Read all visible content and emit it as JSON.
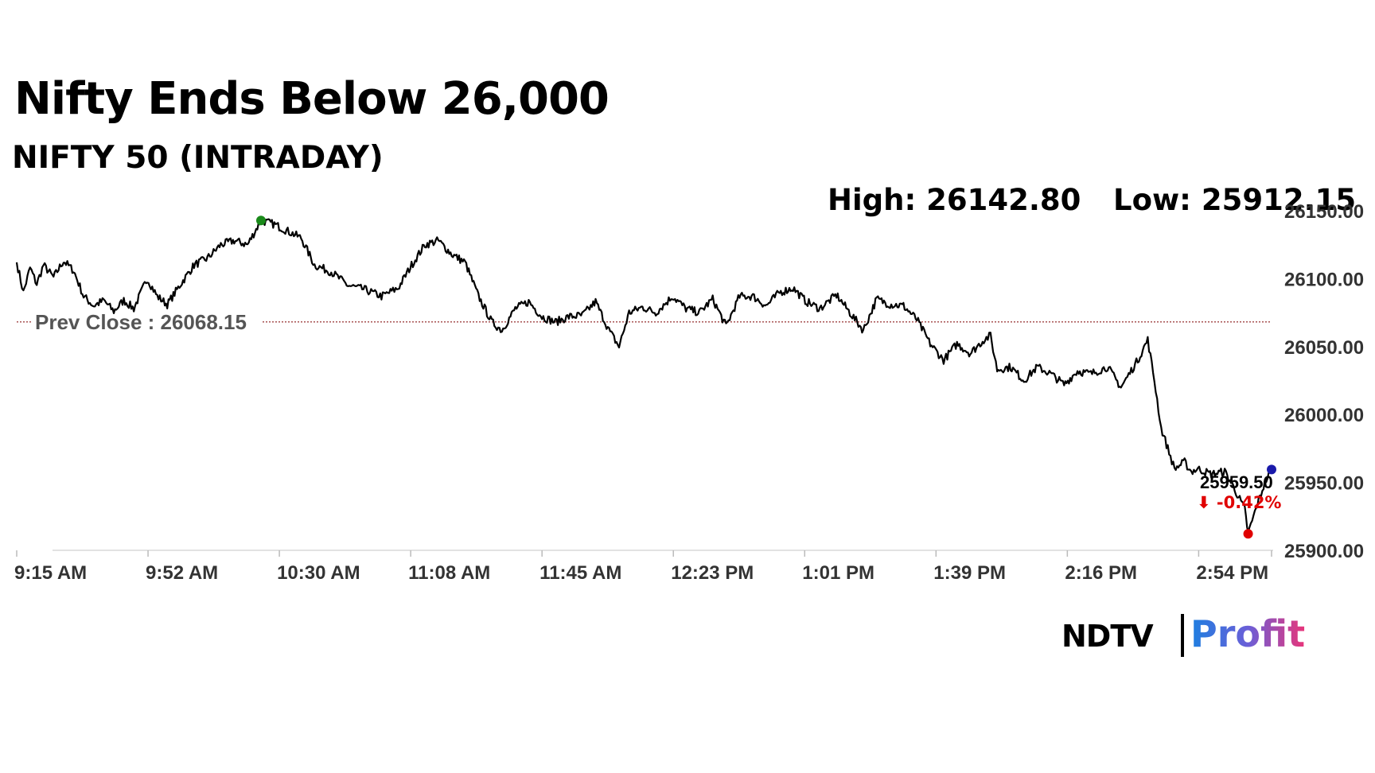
{
  "title": "Nifty Ends Below 26,000",
  "subtitle": "NIFTY 50 (INTRADAY)",
  "stats": {
    "high": "High: 26142.80",
    "low": "Low: 25912.15"
  },
  "logo": {
    "part1": "NDTV",
    "part2": "Profit"
  },
  "chart_data": {
    "type": "line",
    "x_unit": "time",
    "ylim": [
      25900,
      26150
    ],
    "y_ticks": [
      25900,
      25950,
      26000,
      26050,
      26100,
      26150
    ],
    "y_tick_labels": [
      "25900.00",
      "25950.00",
      "26000.00",
      "26050.00",
      "26100.00",
      "26150.00"
    ],
    "x_tick_labels": [
      "9:15 AM",
      "9:52 AM",
      "10:30 AM",
      "11:08 AM",
      "11:45 AM",
      "12:23 PM",
      "1:01 PM",
      "1:39 PM",
      "2:16 PM",
      "2:54 PM"
    ],
    "x_start": "9:15 AM",
    "x_end": "3:30 PM",
    "prev_close": {
      "value": 26068.15,
      "label": "Prev Close : 26068.15",
      "color": "#8b1a1a"
    },
    "high_marker": {
      "x": "10:28 AM",
      "value": 26142.8,
      "color": "#1a8a1a"
    },
    "low_marker": {
      "x": "3:23 PM",
      "value": 25912.15,
      "color": "#e00000"
    },
    "last": {
      "x": "3:30 PM",
      "value": 25959.5,
      "label": "25959.50",
      "change": "-0.42%",
      "change_color": "#e00000",
      "marker_color": "#1a1aaa"
    },
    "grid": false,
    "line_color": "#000000",
    "series": [
      {
        "points": [
          [
            "9:15 AM",
            26112
          ],
          [
            "9:17 AM",
            26090
          ],
          [
            "9:19 AM",
            26108
          ],
          [
            "9:21 AM",
            26096
          ],
          [
            "9:23 AM",
            26110
          ],
          [
            "9:26 AM",
            26101
          ],
          [
            "9:29 AM",
            26113
          ],
          [
            "9:32 AM",
            26106
          ],
          [
            "9:35 AM",
            26087
          ],
          [
            "9:38 AM",
            26080
          ],
          [
            "9:41 AM",
            26084
          ],
          [
            "9:44 AM",
            26076
          ],
          [
            "9:47 AM",
            26084
          ],
          [
            "9:50 AM",
            26078
          ],
          [
            "9:54 AM",
            26100
          ],
          [
            "9:57 AM",
            26087
          ],
          [
            "10:00 AM",
            26081
          ],
          [
            "10:04 AM",
            26096
          ],
          [
            "10:08 AM",
            26110
          ],
          [
            "10:12 AM",
            26115
          ],
          [
            "10:16 AM",
            26125
          ],
          [
            "10:20 AM",
            26128
          ],
          [
            "10:24 AM",
            26125
          ],
          [
            "10:28 AM",
            26142.8
          ],
          [
            "10:32 AM",
            26140
          ],
          [
            "10:36 AM",
            26135
          ],
          [
            "10:40 AM",
            26130
          ],
          [
            "10:44 AM",
            26110
          ],
          [
            "10:49 AM",
            26105
          ],
          [
            "10:54 AM",
            26095
          ],
          [
            "10:59 AM",
            26092
          ],
          [
            "11:04 AM",
            26087
          ],
          [
            "11:09 AM",
            26093
          ],
          [
            "11:13 AM",
            26110
          ],
          [
            "11:17 AM",
            26125
          ],
          [
            "11:21 AM",
            26128
          ],
          [
            "11:25 AM",
            26118
          ],
          [
            "11:29 AM",
            26112
          ],
          [
            "11:33 AM",
            26087
          ],
          [
            "11:37 AM",
            26068
          ],
          [
            "11:40 AM",
            26062
          ],
          [
            "11:44 AM",
            26078
          ],
          [
            "11:48 AM",
            26083
          ],
          [
            "11:52 AM",
            26072
          ],
          [
            "11:56 AM",
            26068
          ],
          [
            "12:00 PM",
            26072
          ],
          [
            "12:04 PM",
            26073
          ],
          [
            "12:08 PM",
            26083
          ],
          [
            "12:12 PM",
            26062
          ],
          [
            "12:15 PM",
            26050
          ],
          [
            "12:18 PM",
            26075
          ],
          [
            "12:22 PM",
            26079
          ],
          [
            "12:26 PM",
            26075
          ],
          [
            "12:31 PM",
            26087
          ],
          [
            "12:35 PM",
            26078
          ],
          [
            "12:39 PM",
            26075
          ],
          [
            "12:43 PM",
            26085
          ],
          [
            "12:47 PM",
            26065
          ],
          [
            "12:51 PM",
            26087
          ],
          [
            "12:55 PM",
            26087
          ],
          [
            "12:59 PM",
            26080
          ],
          [
            "1:03 PM",
            26090
          ],
          [
            "1:07 PM",
            26093
          ],
          [
            "1:11 PM",
            26083
          ],
          [
            "1:15 PM",
            26078
          ],
          [
            "1:20 PM",
            26088
          ],
          [
            "1:24 PM",
            26075
          ],
          [
            "1:28 PM",
            26062
          ],
          [
            "1:32 PM",
            26085
          ],
          [
            "1:36 PM",
            26081
          ],
          [
            "1:40 PM",
            26080
          ],
          [
            "1:44 PM",
            26070
          ],
          [
            "1:48 PM",
            26052
          ],
          [
            "1:52 PM",
            26040
          ],
          [
            "1:56 PM",
            26052
          ],
          [
            "2:00 PM",
            26045
          ],
          [
            "2:04 PM",
            26055
          ],
          [
            "2:06 PM",
            26058
          ],
          [
            "2:08 PM",
            26033
          ],
          [
            "2:12 PM",
            26035
          ],
          [
            "2:16 PM",
            26025
          ],
          [
            "2:20 PM",
            26035
          ],
          [
            "2:24 PM",
            26030
          ],
          [
            "2:28 PM",
            26022
          ],
          [
            "2:32 PM",
            26032
          ],
          [
            "2:36 PM",
            26030
          ],
          [
            "2:41 PM",
            26035
          ],
          [
            "2:45 PM",
            26020
          ],
          [
            "2:50 PM",
            26040
          ],
          [
            "2:53 PM",
            26055
          ],
          [
            "2:55 PM",
            26025
          ],
          [
            "2:57 PM",
            25990
          ],
          [
            "2:59 PM",
            25975
          ],
          [
            "3:01 PM",
            25960
          ],
          [
            "3:04 PM",
            25965
          ],
          [
            "3:06 PM",
            25958
          ],
          [
            "3:08 PM",
            25960
          ],
          [
            "3:12 PM",
            25956
          ],
          [
            "3:16 PM",
            25958
          ],
          [
            "3:19 PM",
            25945
          ],
          [
            "3:22 PM",
            25930
          ],
          [
            "3:23 PM",
            25912.15
          ],
          [
            "3:25 PM",
            25928
          ],
          [
            "3:28 PM",
            25950
          ],
          [
            "3:30 PM",
            25959.5
          ]
        ]
      }
    ]
  }
}
